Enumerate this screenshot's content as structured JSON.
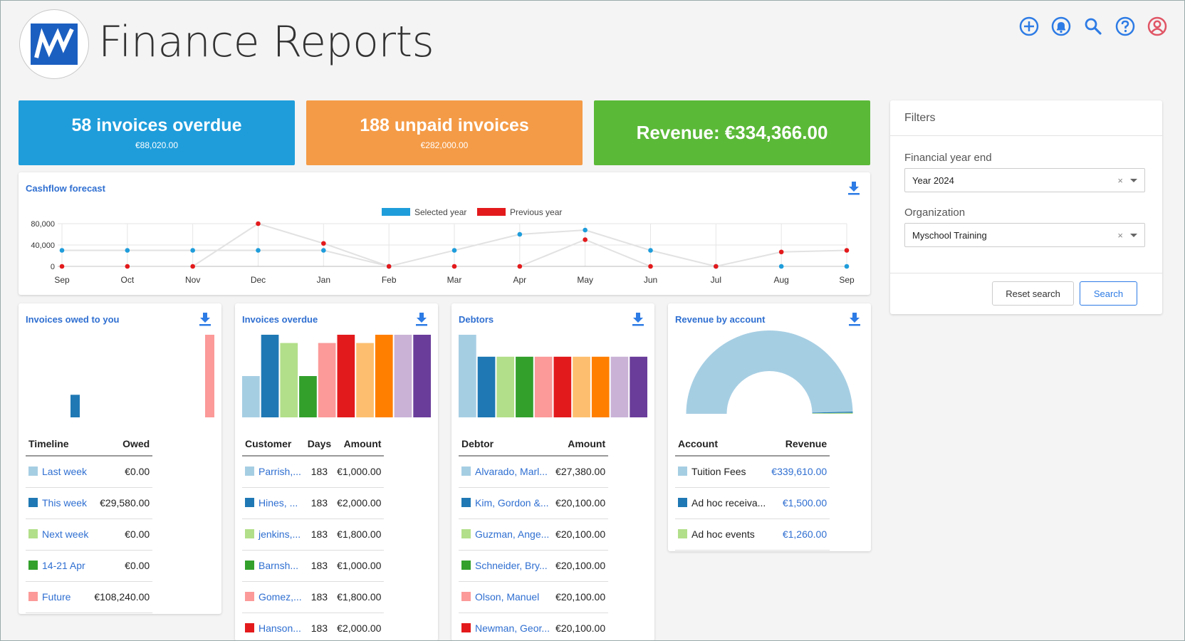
{
  "app": {
    "title": "Finance Reports"
  },
  "header_icons": [
    "add-circle-icon",
    "bell-icon",
    "search-icon",
    "help-icon",
    "user-account-icon"
  ],
  "tiles": [
    {
      "title": "58 invoices overdue",
      "sub": "€88,020.00",
      "color": "#1f9ddb"
    },
    {
      "title": "188 unpaid invoices",
      "sub": "€282,000.00",
      "color": "#f49b47"
    },
    {
      "title": "Revenue: €334,366.00",
      "sub": "",
      "color": "#5bb938"
    }
  ],
  "cashflow": {
    "title": "Cashflow forecast",
    "chart_data": {
      "type": "line",
      "categories": [
        "Sep",
        "Oct",
        "Nov",
        "Dec",
        "Jan",
        "Feb",
        "Mar",
        "Apr",
        "May",
        "Jun",
        "Jul",
        "Aug",
        "Sep"
      ],
      "series": [
        {
          "name": "Selected year",
          "color": "#1f9ddb",
          "values": [
            30000,
            30000,
            30000,
            30000,
            30000,
            0,
            30000,
            60000,
            68000,
            30000,
            0,
            0,
            0
          ]
        },
        {
          "name": "Previous year",
          "color": "#e31a1c",
          "values": [
            0,
            0,
            0,
            80000,
            43000,
            0,
            0,
            0,
            50000,
            0,
            0,
            27000,
            30000
          ]
        }
      ],
      "yticks": [
        "80,000",
        "40,000",
        "0"
      ],
      "ylim": [
        0,
        80000
      ],
      "legend": "top-center",
      "grid": true
    }
  },
  "palette": [
    "#a6cee3",
    "#1f78b4",
    "#b2df8a",
    "#33a02c",
    "#fb9a99",
    "#e31a1c",
    "#fdbf6f",
    "#ff7f00",
    "#cab2d6",
    "#6a3d9a"
  ],
  "owed": {
    "title": "Invoices owed to you",
    "headers": [
      "Timeline",
      "Owed"
    ],
    "rows": [
      {
        "label": "Last week",
        "value": "€0.00"
      },
      {
        "label": "This week",
        "value": "€29,580.00"
      },
      {
        "label": "Next week",
        "value": "€0.00"
      },
      {
        "label": "14-21 Apr",
        "value": "€0.00"
      },
      {
        "label": "Future",
        "value": "€108,240.00"
      }
    ],
    "chart_data": {
      "type": "bar",
      "categories": [
        "Last week",
        "This week",
        "Next week",
        "14-21 Apr",
        "Future"
      ],
      "values": [
        0,
        29580,
        0,
        0,
        108240
      ],
      "ylim": [
        0,
        108240
      ]
    }
  },
  "overdue": {
    "title": "Invoices overdue",
    "headers": [
      "Customer",
      "Days",
      "Amount"
    ],
    "rows": [
      {
        "customer": "Parrish,...",
        "days": "183",
        "amount": "€1,000.00"
      },
      {
        "customer": "Hines, ...",
        "days": "183",
        "amount": "€2,000.00"
      },
      {
        "customer": "jenkins,...",
        "days": "183",
        "amount": "€1,800.00"
      },
      {
        "customer": "Barnsh...",
        "days": "183",
        "amount": "€1,000.00"
      },
      {
        "customer": "Gomez,...",
        "days": "183",
        "amount": "€1,800.00"
      },
      {
        "customer": "Hanson...",
        "days": "183",
        "amount": "€2,000.00"
      }
    ],
    "chart_data": {
      "type": "bar",
      "values": [
        1000,
        2000,
        1800,
        1000,
        1800,
        2000,
        1800,
        2000,
        2000,
        2000
      ],
      "ylim": [
        0,
        2000
      ]
    }
  },
  "debtors": {
    "title": "Debtors",
    "headers": [
      "Debtor",
      "Amount"
    ],
    "rows": [
      {
        "debtor": "Alvarado, Marl...",
        "amount": "€27,380.00"
      },
      {
        "debtor": "Kim, Gordon &...",
        "amount": "€20,100.00"
      },
      {
        "debtor": "Guzman, Ange...",
        "amount": "€20,100.00"
      },
      {
        "debtor": "Schneider, Bry...",
        "amount": "€20,100.00"
      },
      {
        "debtor": "Olson, Manuel",
        "amount": "€20,100.00"
      },
      {
        "debtor": "Newman, Geor...",
        "amount": "€20,100.00"
      }
    ],
    "chart_data": {
      "type": "bar",
      "values": [
        27380,
        20100,
        20100,
        20100,
        20100,
        20100,
        20100,
        20100,
        20100,
        20100
      ],
      "ylim": [
        0,
        27380
      ]
    }
  },
  "revenue": {
    "title": "Revenue by account",
    "headers": [
      "Account",
      "Revenue"
    ],
    "rows": [
      {
        "account": "Tuition Fees",
        "value": "€339,610.00"
      },
      {
        "account": "Ad hoc receiva...",
        "value": "€1,500.00"
      },
      {
        "account": "Ad hoc events",
        "value": "€1,260.00"
      }
    ],
    "chart_data": {
      "type": "pie",
      "variant": "half-donut",
      "categories": [
        "Tuition Fees",
        "Ad hoc receiva...",
        "Ad hoc events"
      ],
      "values": [
        339610,
        1500,
        1260
      ]
    }
  },
  "filters": {
    "title": "Filters",
    "fy_label": "Financial year end",
    "fy_value": "Year 2024",
    "org_label": "Organization",
    "org_value": "Myschool Training",
    "clear_glyph": "×",
    "reset_label": "Reset search",
    "search_label": "Search"
  }
}
